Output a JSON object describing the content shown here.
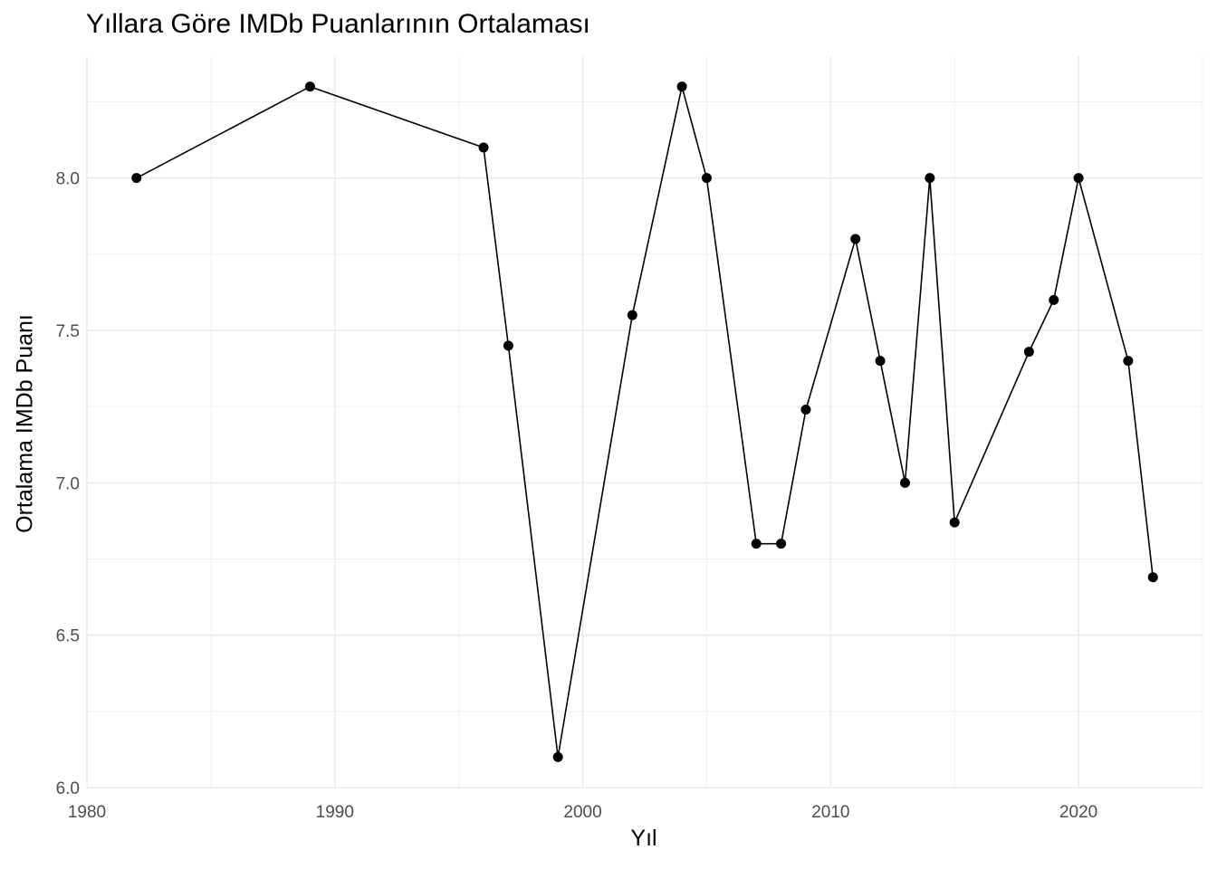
{
  "chart_data": {
    "type": "line",
    "title": "Yıllara Göre IMDb Puanlarının Ortalaması",
    "xlabel": "Yıl",
    "ylabel": "Ortalama IMDb Puanı",
    "xlim": [
      1980,
      2025
    ],
    "ylim": [
      6.0,
      8.4
    ],
    "x_ticks": [
      1980,
      1990,
      2000,
      2010,
      2020
    ],
    "x_tick_labels": [
      "1980",
      "1990",
      "2000",
      "2010",
      "2020"
    ],
    "y_ticks": [
      6.0,
      6.5,
      7.0,
      7.5,
      8.0
    ],
    "y_tick_labels": [
      "6.0",
      "6.5",
      "7.0",
      "7.5",
      "8.0"
    ],
    "grid": true,
    "legend": "none",
    "series": [
      {
        "color": "#000000",
        "x": [
          1982,
          1989,
          1996,
          1997,
          1999,
          2002,
          2004,
          2005,
          2007,
          2008,
          2009,
          2011,
          2012,
          2013,
          2014,
          2015,
          2018,
          2019,
          2020,
          2022,
          2023
        ],
        "y": [
          8.0,
          8.3,
          8.1,
          7.45,
          6.1,
          7.55,
          8.3,
          8.0,
          6.8,
          6.8,
          7.24,
          7.8,
          7.4,
          7.0,
          8.0,
          6.87,
          7.43,
          7.6,
          8.0,
          7.4,
          6.69
        ]
      }
    ]
  }
}
